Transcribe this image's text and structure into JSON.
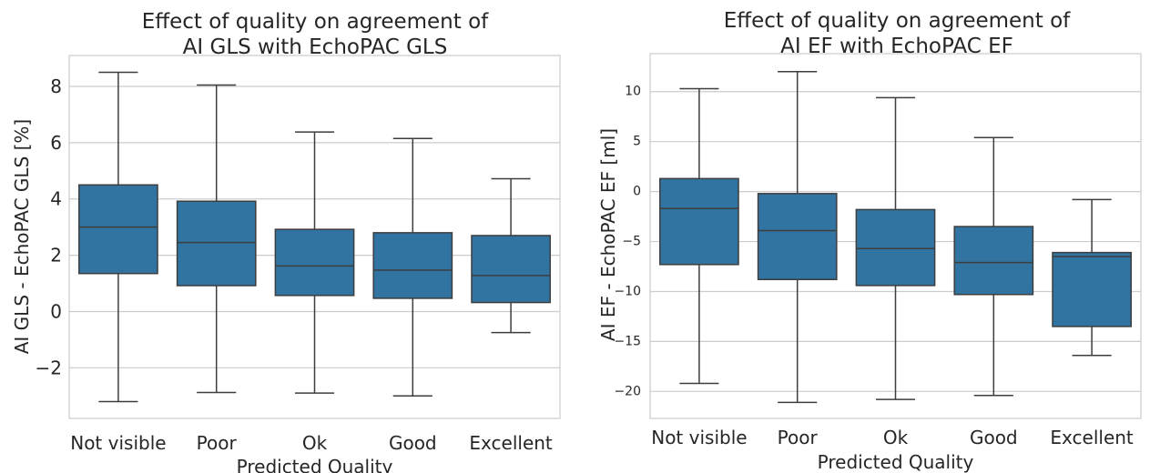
{
  "colors": {
    "box_fill": "#3274a1",
    "line": "#3d3d3d",
    "grid": "#cccccc",
    "frame": "#cccccc",
    "text": "#262626"
  },
  "chart_data": [
    {
      "type": "box",
      "title_line1": "Effect of quality on agreement of",
      "title_line2": "AI GLS with EchoPAC GLS",
      "xlabel": "Predicted Quality",
      "ylabel": "AI GLS - EchoPAC GLS [%]",
      "grid": "horizontal",
      "ylim": [
        -3.8,
        9.1
      ],
      "yticks": [
        -2,
        0,
        2,
        4,
        6,
        8
      ],
      "ytick_labels": [
        "−2",
        "0",
        "2",
        "4",
        "6",
        "8"
      ],
      "categories": [
        "Not visible",
        "Poor",
        "Ok",
        "Good",
        "Excellent"
      ],
      "boxes": [
        {
          "whislo": -3.2,
          "q1": 1.35,
          "med": 3.0,
          "q3": 4.5,
          "whishi": 8.5
        },
        {
          "whislo": -2.88,
          "q1": 0.92,
          "med": 2.45,
          "q3": 3.92,
          "whishi": 8.05
        },
        {
          "whislo": -2.9,
          "q1": 0.57,
          "med": 1.62,
          "q3": 2.92,
          "whishi": 6.38
        },
        {
          "whislo": -3.0,
          "q1": 0.47,
          "med": 1.47,
          "q3": 2.8,
          "whishi": 6.15
        },
        {
          "whislo": -0.75,
          "q1": 0.32,
          "med": 1.28,
          "q3": 2.7,
          "whishi": 4.72
        }
      ]
    },
    {
      "type": "box",
      "title_line1": "Effect of quality on agreement of",
      "title_line2": "AI EF with EchoPAC EF",
      "xlabel": "Predicted Quality",
      "ylabel": "AI EF - EchoPAC EF [ml]",
      "grid": "horizontal",
      "ylim": [
        -22.7,
        13.8
      ],
      "yticks": [
        -20,
        -15,
        -10,
        -5,
        0,
        5,
        10
      ],
      "ytick_labels": [
        "−20",
        "−15",
        "−10",
        "−5",
        "0",
        "5",
        "10"
      ],
      "categories": [
        "Not visible",
        "Poor",
        "Ok",
        "Good",
        "Excellent"
      ],
      "boxes": [
        {
          "whislo": -19.2,
          "q1": -7.3,
          "med": -1.7,
          "q3": 1.3,
          "whishi": 10.3
        },
        {
          "whislo": -21.1,
          "q1": -8.8,
          "med": -3.9,
          "q3": -0.2,
          "whishi": 12.0
        },
        {
          "whislo": -20.8,
          "q1": -9.4,
          "med": -5.7,
          "q3": -1.8,
          "whishi": 9.4
        },
        {
          "whislo": -20.4,
          "q1": -10.3,
          "med": -7.1,
          "q3": -3.5,
          "whishi": 5.4
        },
        {
          "whislo": -16.4,
          "q1": -13.5,
          "med": -6.5,
          "q3": -6.1,
          "whishi": -0.8
        }
      ]
    }
  ]
}
